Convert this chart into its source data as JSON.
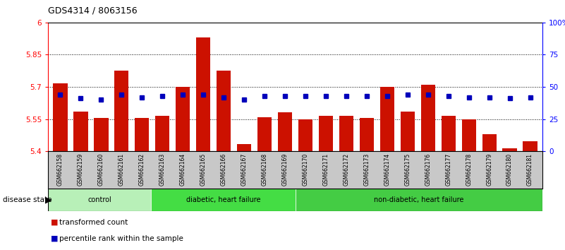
{
  "title": "GDS4314 / 8063156",
  "samples": [
    "GSM662158",
    "GSM662159",
    "GSM662160",
    "GSM662161",
    "GSM662162",
    "GSM662163",
    "GSM662164",
    "GSM662165",
    "GSM662166",
    "GSM662167",
    "GSM662168",
    "GSM662169",
    "GSM662170",
    "GSM662171",
    "GSM662172",
    "GSM662173",
    "GSM662174",
    "GSM662175",
    "GSM662176",
    "GSM662177",
    "GSM662178",
    "GSM662179",
    "GSM662180",
    "GSM662181"
  ],
  "transformed_count": [
    5.715,
    5.585,
    5.555,
    5.775,
    5.555,
    5.565,
    5.7,
    5.93,
    5.775,
    5.435,
    5.56,
    5.58,
    5.55,
    5.565,
    5.565,
    5.555,
    5.7,
    5.585,
    5.71,
    5.565,
    5.55,
    5.48,
    5.415,
    5.445
  ],
  "percentile_rank": [
    44,
    41,
    40,
    44,
    42,
    43,
    44,
    44,
    42,
    40,
    43,
    43,
    43,
    43,
    43,
    43,
    43,
    44,
    44,
    43,
    42,
    42,
    41,
    42
  ],
  "groups": [
    {
      "label": "control",
      "start": 0,
      "end": 5,
      "color": "#b8f0b8"
    },
    {
      "label": "diabetic, heart failure",
      "start": 5,
      "end": 12,
      "color": "#44dd44"
    },
    {
      "label": "non-diabetic, heart failure",
      "start": 12,
      "end": 24,
      "color": "#44cc44"
    }
  ],
  "ylim_left": [
    5.4,
    6.0
  ],
  "ylim_right": [
    0,
    100
  ],
  "yticks_left": [
    5.4,
    5.55,
    5.7,
    5.85,
    6.0
  ],
  "ytick_labels_left": [
    "5.4",
    "5.55",
    "5.7",
    "5.85",
    "6"
  ],
  "yticks_right": [
    0,
    25,
    50,
    75,
    100
  ],
  "ytick_labels_right": [
    "0",
    "25",
    "50",
    "75",
    "100%"
  ],
  "bar_color": "#cc1100",
  "dot_color": "#0000bb",
  "bg_color": "#c8c8c8",
  "legend_items": [
    {
      "label": "transformed count",
      "color": "#cc1100"
    },
    {
      "label": "percentile rank within the sample",
      "color": "#0000bb"
    }
  ]
}
